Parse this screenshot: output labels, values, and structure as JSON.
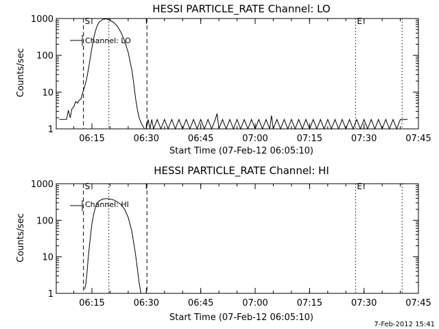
{
  "figure": {
    "footer_date": "7-Feb-2012 15:41",
    "colors": {
      "background": "#ffffff",
      "foreground": "#000000"
    }
  },
  "chart_data": [
    {
      "type": "line",
      "title": "HESSI PARTICLE_RATE Channel: LO",
      "xlabel": "Start Time (07-Feb-12 06:05:10)",
      "ylabel": "Counts/sec",
      "yscale": "log",
      "ylim": [
        1,
        1000
      ],
      "yticks": [
        1,
        10,
        100,
        1000
      ],
      "ytick_labels": [
        "1",
        "10",
        "100",
        "1000"
      ],
      "xlim": [
        "06:05:10",
        "07:45:00"
      ],
      "xticks": [
        "06:15",
        "06:30",
        "06:45",
        "07:00",
        "07:15",
        "07:30",
        "07:45"
      ],
      "xtick_labels": [
        "06:15",
        "06:30",
        "06:45",
        "07:00",
        "07:15",
        "07:30",
        "07:45"
      ],
      "grid": false,
      "legend": "top-left",
      "series": [
        {
          "name": "Channel: LO",
          "x": [
            "06:06:00",
            "06:07:00",
            "06:08:00",
            "06:08:30",
            "06:09:00",
            "06:09:30",
            "06:10:00",
            "06:10:30",
            "06:11:00",
            "06:11:30",
            "06:12:00",
            "06:12:30",
            "06:13:00",
            "06:13:30",
            "06:14:00",
            "06:14:30",
            "06:15:00",
            "06:15:30",
            "06:16:00",
            "06:16:30",
            "06:17:00",
            "06:18:00",
            "06:19:00",
            "06:20:00",
            "06:21:00",
            "06:22:00",
            "06:23:00",
            "06:24:00",
            "06:25:00",
            "06:26:00",
            "06:26:30",
            "06:27:00",
            "06:27:30",
            "06:28:00",
            "06:28:30",
            "06:29:00",
            "06:29:30",
            "06:30:00",
            "06:30:30",
            "06:31:00",
            "06:31:30",
            "06:32:00",
            "06:33:00",
            "06:34:00",
            "06:35:00",
            "06:36:00",
            "06:37:00",
            "06:38:00",
            "06:39:00",
            "06:40:00",
            "06:41:00",
            "06:42:00",
            "06:43:00",
            "06:44:00",
            "06:45:00",
            "06:46:00",
            "06:47:00",
            "06:48:00",
            "06:49:00",
            "06:49:30",
            "06:50:00",
            "06:51:00",
            "06:52:00",
            "06:53:00",
            "06:54:00",
            "06:55:00",
            "06:56:00",
            "06:57:00",
            "06:58:00",
            "06:59:00",
            "07:00:00",
            "07:01:00",
            "07:02:00",
            "07:03:00",
            "07:04:00",
            "07:04:30",
            "07:05:00",
            "07:06:00",
            "07:07:00",
            "07:08:00",
            "07:09:00",
            "07:10:00",
            "07:11:00",
            "07:12:00",
            "07:13:00",
            "07:14:00",
            "07:15:00",
            "07:16:00",
            "07:17:00",
            "07:18:00",
            "07:19:00",
            "07:20:00",
            "07:21:00",
            "07:22:00",
            "07:23:00",
            "07:24:00",
            "07:25:00",
            "07:26:00",
            "07:27:00",
            "07:28:00",
            "07:29:00",
            "07:30:00",
            "07:31:00",
            "07:32:00",
            "07:33:00",
            "07:34:00",
            "07:35:00",
            "07:36:00",
            "07:37:00",
            "07:38:00",
            "07:39:00",
            "07:40:00",
            "07:41:00",
            "07:42:00"
          ],
          "y": [
            1.8,
            1.8,
            1.8,
            3.2,
            2,
            3.5,
            4,
            5.5,
            5,
            6,
            6.5,
            10,
            14,
            22,
            40,
            80,
            160,
            300,
            470,
            650,
            800,
            950,
            980,
            900,
            780,
            620,
            420,
            250,
            120,
            40,
            18,
            7,
            3.5,
            2,
            1.5,
            1.2,
            1,
            1,
            1.8,
            1,
            1.8,
            1,
            1.8,
            1,
            1.8,
            1,
            1.8,
            1,
            1.8,
            1,
            1.8,
            1,
            1.8,
            1,
            1.8,
            1,
            1.8,
            1,
            1.8,
            2.6,
            1,
            1.8,
            1,
            1.8,
            1,
            1.8,
            1,
            1.8,
            1,
            1.8,
            1,
            1.8,
            1,
            1.8,
            1,
            2.3,
            1,
            1.8,
            1,
            1.8,
            1,
            1.8,
            1,
            1.8,
            1,
            1.8,
            1,
            1.8,
            1,
            1.8,
            1,
            1.8,
            1,
            1.8,
            1,
            1.8,
            1,
            1.8,
            1,
            1.8,
            1,
            1.8,
            1,
            1.8,
            1,
            1.8,
            1,
            1.8,
            1,
            1.8,
            1,
            1.8,
            1.8,
            1.8
          ]
        }
      ],
      "annotations": [
        {
          "text": "S",
          "x": "06:12:40",
          "style": "dashed"
        },
        {
          "text": "",
          "x": "06:30:10",
          "style": "dashed"
        },
        {
          "text": "",
          "x": "06:19:40",
          "style": "dotted"
        },
        {
          "text": "E",
          "x": "07:27:40",
          "style": "dotted"
        },
        {
          "text": "",
          "x": "07:40:30",
          "style": "dotted"
        }
      ]
    },
    {
      "type": "line",
      "title": "HESSI PARTICLE_RATE Channel: HI",
      "xlabel": "Start Time (07-Feb-12 06:05:10)",
      "ylabel": "Counts/sec",
      "yscale": "log",
      "ylim": [
        1,
        1000
      ],
      "yticks": [
        1,
        10,
        100,
        1000
      ],
      "ytick_labels": [
        "1",
        "10",
        "100",
        "1000"
      ],
      "xlim": [
        "06:05:10",
        "07:45:00"
      ],
      "xticks": [
        "06:15",
        "06:30",
        "06:45",
        "07:00",
        "07:15",
        "07:30",
        "07:45"
      ],
      "xtick_labels": [
        "06:15",
        "06:30",
        "06:45",
        "07:00",
        "07:15",
        "07:30",
        "07:45"
      ],
      "grid": false,
      "legend": "top-left",
      "series": [
        {
          "name": "Channel: HI",
          "x": [
            "06:13:00",
            "06:13:20",
            "06:13:40",
            "06:14:00",
            "06:14:30",
            "06:15:00",
            "06:15:30",
            "06:16:00",
            "06:16:30",
            "06:17:00",
            "06:18:00",
            "06:19:00",
            "06:20:00",
            "06:21:00",
            "06:22:00",
            "06:23:00",
            "06:24:00",
            "06:25:00",
            "06:26:00",
            "06:27:00",
            "06:28:00",
            "06:28:30"
          ],
          "y": [
            1.3,
            1.8,
            4,
            10,
            30,
            80,
            150,
            230,
            300,
            340,
            380,
            390,
            380,
            360,
            320,
            270,
            200,
            120,
            50,
            12,
            2,
            1
          ]
        }
      ],
      "annotations": [
        {
          "text": "S",
          "x": "06:12:40",
          "style": "dashed"
        },
        {
          "text": "",
          "x": "06:30:10",
          "style": "dashed"
        },
        {
          "text": "",
          "x": "06:19:40",
          "style": "dotted"
        },
        {
          "text": "E",
          "x": "07:27:40",
          "style": "dotted"
        },
        {
          "text": "",
          "x": "07:40:30",
          "style": "dotted"
        }
      ]
    }
  ]
}
